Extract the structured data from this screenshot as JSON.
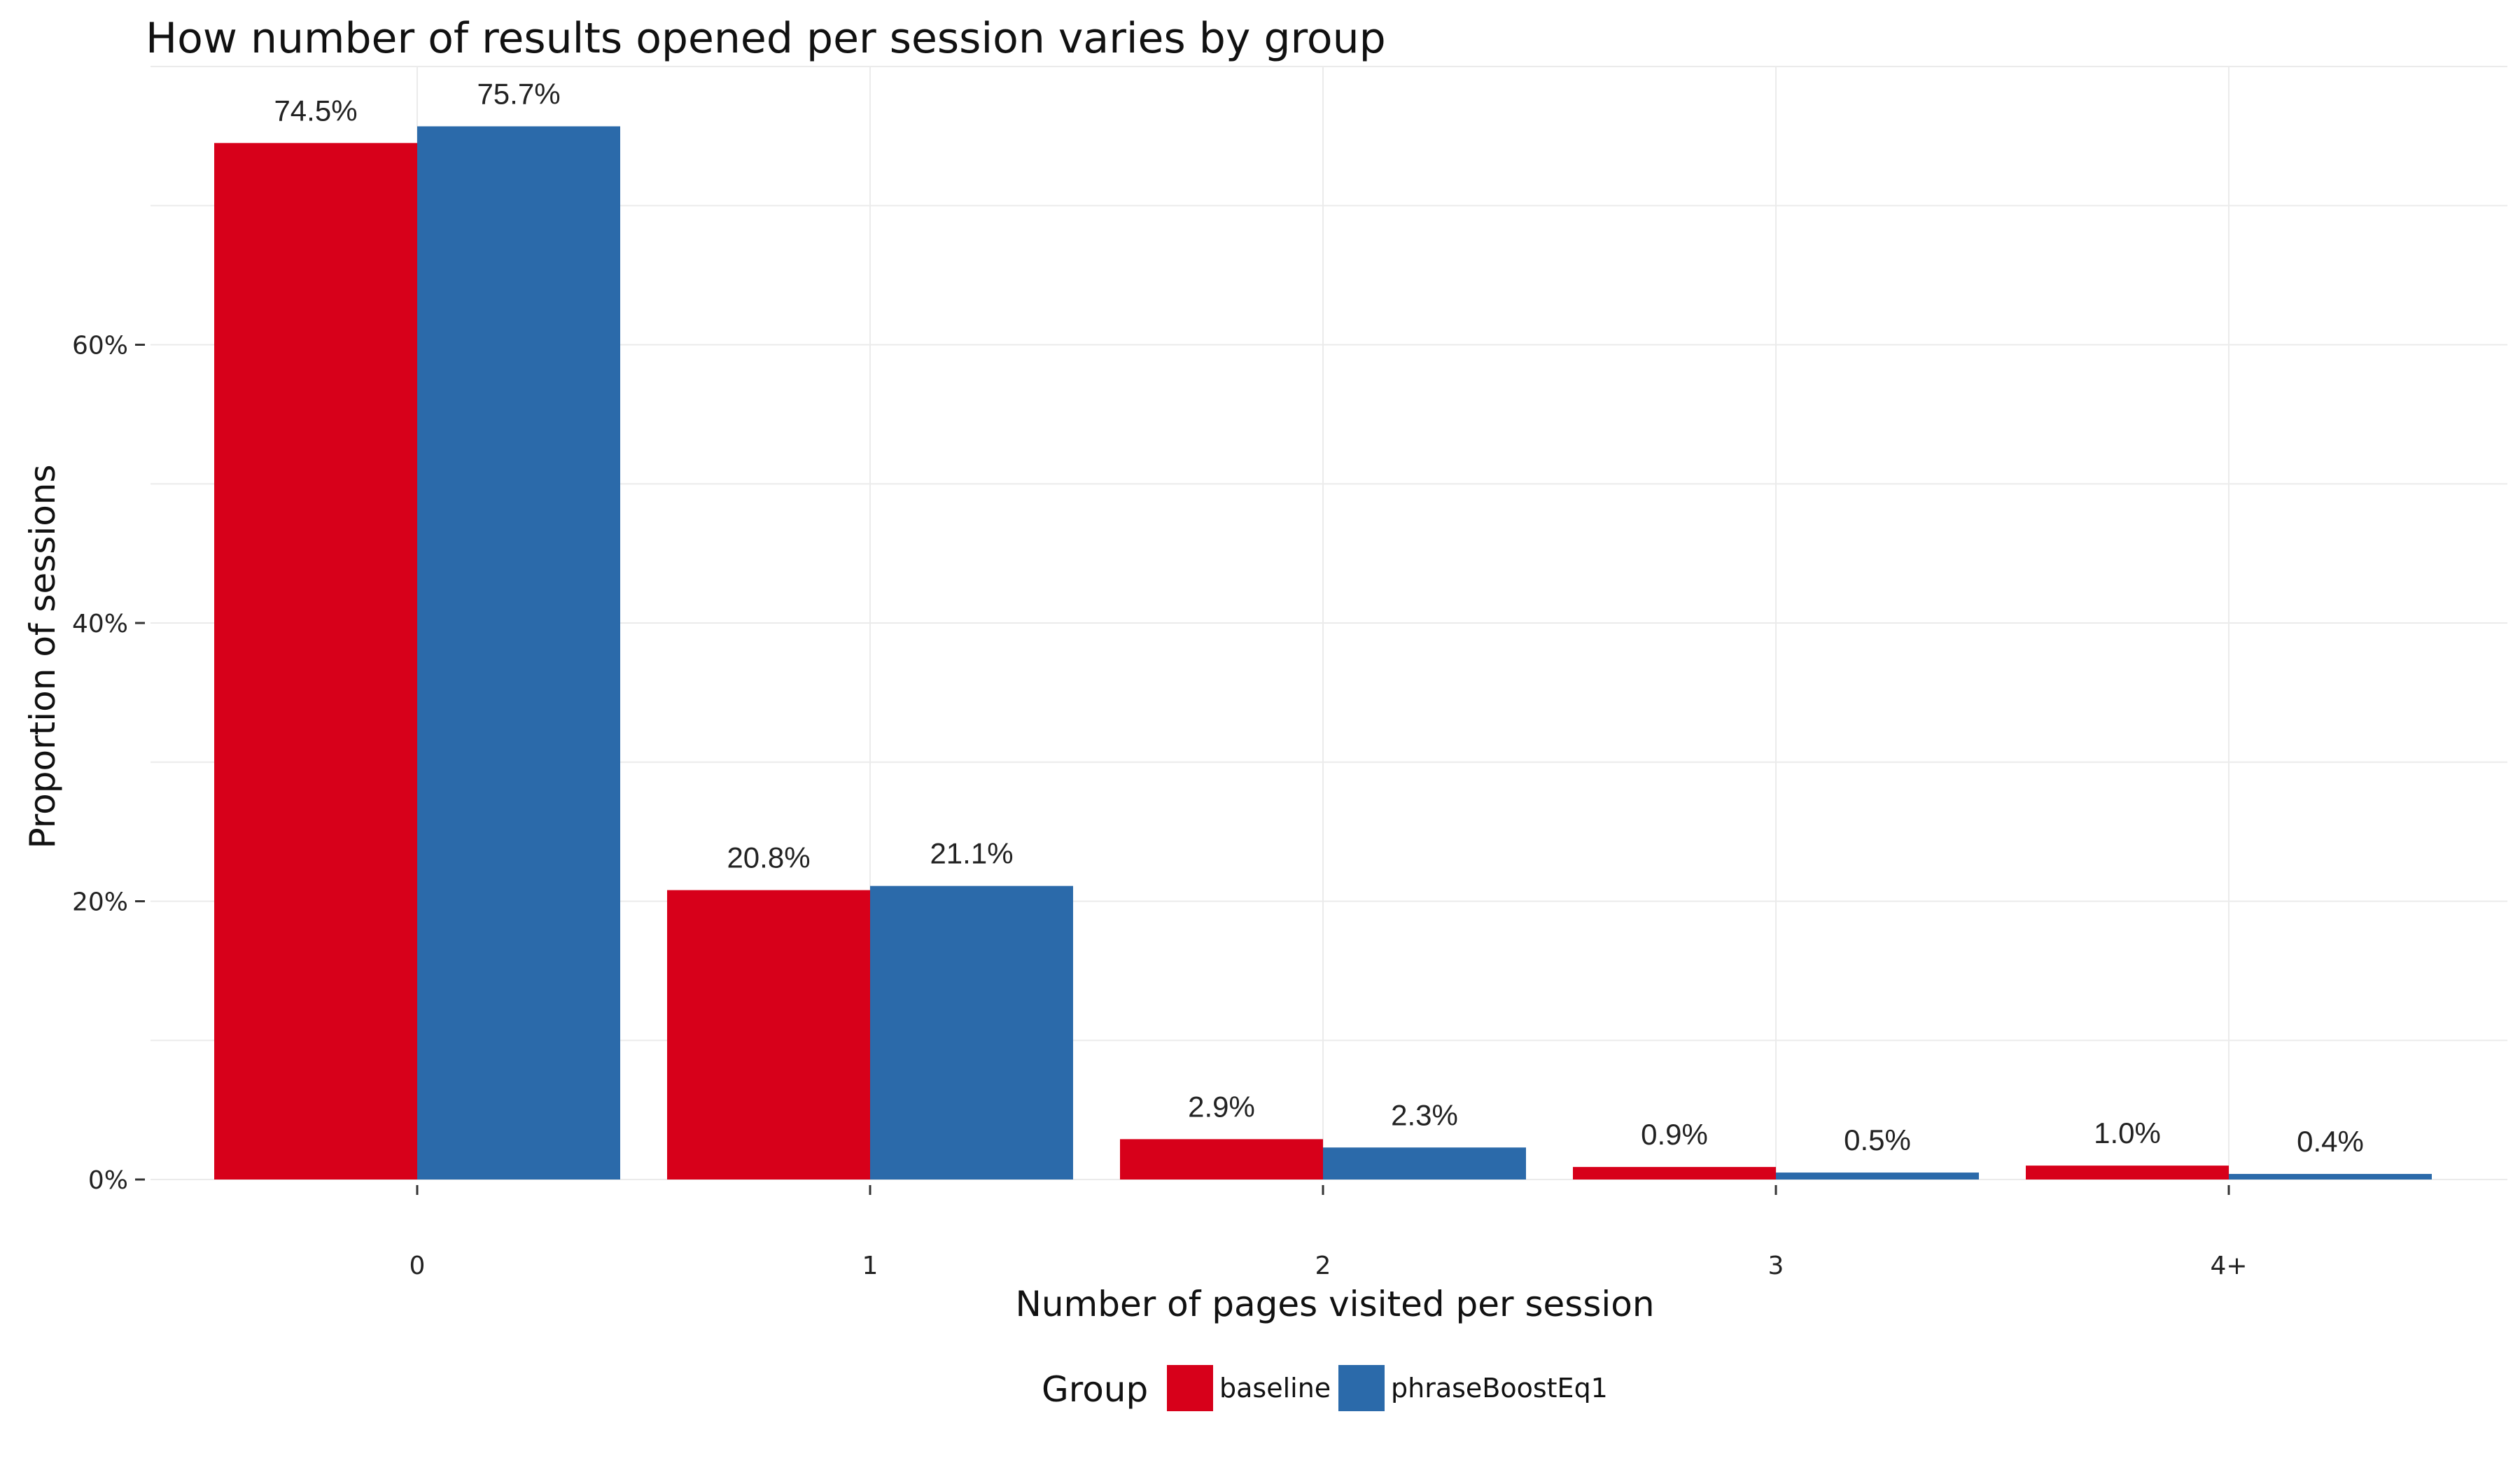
{
  "chart_data": {
    "type": "bar",
    "title": "How number of results opened per session varies by group",
    "xlabel": "Number of pages visited per session",
    "ylabel": "Proportion of sessions",
    "categories": [
      "0",
      "1",
      "2",
      "3",
      "4+"
    ],
    "series": [
      {
        "name": "baseline",
        "color": "#D7001A",
        "values": [
          74.5,
          20.8,
          2.9,
          0.9,
          1.0
        ],
        "labels": [
          "74.5%",
          "20.8%",
          "2.9%",
          "0.9%",
          "1.0%"
        ]
      },
      {
        "name": "phraseBoostEq1",
        "color": "#2B6AAA",
        "values": [
          75.7,
          21.1,
          2.3,
          0.5,
          0.4
        ],
        "labels": [
          "75.7%",
          "21.1%",
          "2.3%",
          "0.5%",
          "0.4%"
        ]
      }
    ],
    "ylim": [
      0,
      80
    ],
    "yticks": [
      0,
      20,
      40,
      60
    ],
    "ytick_labels": [
      "0%",
      "20%",
      "40%",
      "60%"
    ],
    "grid": true,
    "legend": {
      "title": "Group",
      "position": "bottom"
    }
  }
}
